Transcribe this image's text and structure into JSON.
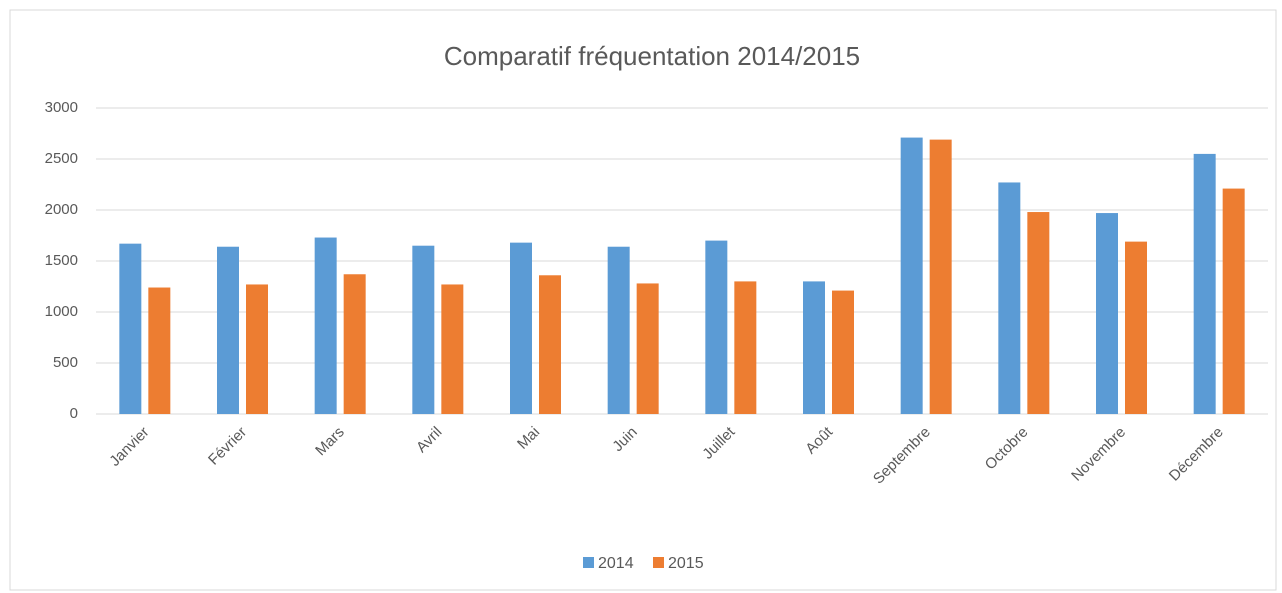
{
  "chart_data": {
    "type": "bar",
    "title": "Comparatif fréquentation 2014/2015",
    "categories": [
      "Janvier",
      "Février",
      "Mars",
      "Avril",
      "Mai",
      "Juin",
      "Juillet",
      "Août",
      "Septembre",
      "Octobre",
      "Novembre",
      "Décembre"
    ],
    "series": [
      {
        "name": "2014",
        "color": "#5b9bd5",
        "values": [
          1670,
          1640,
          1730,
          1650,
          1680,
          1640,
          1700,
          1300,
          2710,
          2270,
          1970,
          2550
        ]
      },
      {
        "name": "2015",
        "color": "#ed7d31",
        "values": [
          1240,
          1270,
          1370,
          1270,
          1360,
          1280,
          1300,
          1210,
          2690,
          1980,
          1690,
          2210
        ]
      }
    ],
    "ylim": [
      0,
      3000
    ],
    "yticks": [
      0,
      500,
      1000,
      1500,
      2000,
      2500,
      3000
    ],
    "grid": true,
    "legend": "bottom"
  }
}
